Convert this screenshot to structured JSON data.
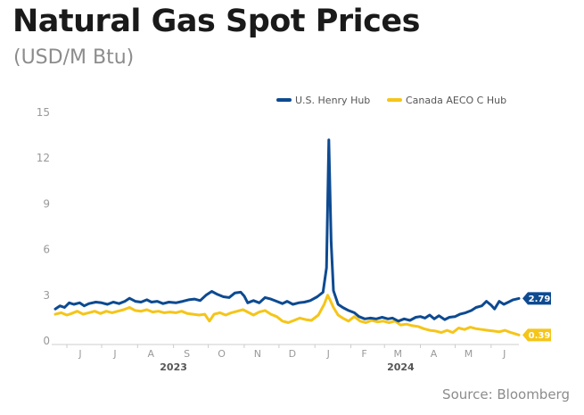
{
  "title": "Natural Gas Spot Prices",
  "subtitle": "(USD/M Btu)",
  "source": "Source: Bloomberg",
  "chart_data": {
    "type": "line",
    "title": "Natural Gas Spot Prices",
    "subtitle": "(USD/M Btu)",
    "xlabel": "",
    "ylabel": "",
    "ylim": [
      0,
      15
    ],
    "yticks": [
      0,
      3,
      6,
      9,
      12,
      15
    ],
    "yticklabels": [
      "0",
      "3",
      "6",
      "9",
      "12",
      "15"
    ],
    "xlim": [
      "2023-05-22",
      "2024-06-25"
    ],
    "x_month_ticks": [
      {
        "date": "2023-06-01",
        "label": "J"
      },
      {
        "date": "2023-07-01",
        "label": "J"
      },
      {
        "date": "2023-08-01",
        "label": "A"
      },
      {
        "date": "2023-09-01",
        "label": "S"
      },
      {
        "date": "2023-10-01",
        "label": "O"
      },
      {
        "date": "2023-11-01",
        "label": "N"
      },
      {
        "date": "2023-12-01",
        "label": "D"
      },
      {
        "date": "2024-01-01",
        "label": "J"
      },
      {
        "date": "2024-02-01",
        "label": "F"
      },
      {
        "date": "2024-03-01",
        "label": "M"
      },
      {
        "date": "2024-04-01",
        "label": "A"
      },
      {
        "date": "2024-05-01",
        "label": "M"
      },
      {
        "date": "2024-06-01",
        "label": "J"
      }
    ],
    "x_year_labels": [
      {
        "date": "2023-09-01",
        "label": "2023"
      },
      {
        "date": "2024-03-15",
        "label": "2024"
      }
    ],
    "grid": false,
    "legend_position": "top-right",
    "series": [
      {
        "name": "U.S. Henry Hub",
        "color": "#0d4a91",
        "end_label": "2.79",
        "points": [
          [
            "2023-05-22",
            2.1
          ],
          [
            "2023-05-26",
            2.3
          ],
          [
            "2023-05-30",
            2.2
          ],
          [
            "2023-06-03",
            2.5
          ],
          [
            "2023-06-07",
            2.4
          ],
          [
            "2023-06-12",
            2.5
          ],
          [
            "2023-06-16",
            2.3
          ],
          [
            "2023-06-20",
            2.45
          ],
          [
            "2023-06-26",
            2.55
          ],
          [
            "2023-07-01",
            2.5
          ],
          [
            "2023-07-06",
            2.4
          ],
          [
            "2023-07-11",
            2.55
          ],
          [
            "2023-07-16",
            2.45
          ],
          [
            "2023-07-21",
            2.6
          ],
          [
            "2023-07-25",
            2.8
          ],
          [
            "2023-07-30",
            2.6
          ],
          [
            "2023-08-04",
            2.55
          ],
          [
            "2023-08-09",
            2.7
          ],
          [
            "2023-08-13",
            2.55
          ],
          [
            "2023-08-18",
            2.6
          ],
          [
            "2023-08-23",
            2.45
          ],
          [
            "2023-08-28",
            2.55
          ],
          [
            "2023-09-03",
            2.5
          ],
          [
            "2023-09-09",
            2.6
          ],
          [
            "2023-09-14",
            2.7
          ],
          [
            "2023-09-19",
            2.75
          ],
          [
            "2023-09-24",
            2.65
          ],
          [
            "2023-09-29",
            3.0
          ],
          [
            "2023-10-04",
            3.25
          ],
          [
            "2023-10-09",
            3.05
          ],
          [
            "2023-10-14",
            2.9
          ],
          [
            "2023-10-19",
            2.85
          ],
          [
            "2023-10-24",
            3.15
          ],
          [
            "2023-10-29",
            3.2
          ],
          [
            "2023-11-01",
            2.95
          ],
          [
            "2023-11-04",
            2.5
          ],
          [
            "2023-11-09",
            2.65
          ],
          [
            "2023-11-14",
            2.5
          ],
          [
            "2023-11-19",
            2.85
          ],
          [
            "2023-11-24",
            2.75
          ],
          [
            "2023-11-29",
            2.6
          ],
          [
            "2023-12-04",
            2.45
          ],
          [
            "2023-12-08",
            2.6
          ],
          [
            "2023-12-13",
            2.4
          ],
          [
            "2023-12-18",
            2.5
          ],
          [
            "2023-12-23",
            2.55
          ],
          [
            "2023-12-28",
            2.65
          ],
          [
            "2024-01-03",
            2.9
          ],
          [
            "2024-01-08",
            3.2
          ],
          [
            "2024-01-11",
            4.8
          ],
          [
            "2024-01-13",
            13.2
          ],
          [
            "2024-01-15",
            6.5
          ],
          [
            "2024-01-17",
            3.3
          ],
          [
            "2024-01-21",
            2.4
          ],
          [
            "2024-01-25",
            2.2
          ],
          [
            "2024-01-30",
            2.0
          ],
          [
            "2024-02-04",
            1.85
          ],
          [
            "2024-02-08",
            1.6
          ],
          [
            "2024-02-13",
            1.45
          ],
          [
            "2024-02-18",
            1.5
          ],
          [
            "2024-02-23",
            1.45
          ],
          [
            "2024-02-28",
            1.55
          ],
          [
            "2024-03-04",
            1.45
          ],
          [
            "2024-03-08",
            1.5
          ],
          [
            "2024-03-13",
            1.3
          ],
          [
            "2024-03-18",
            1.45
          ],
          [
            "2024-03-23",
            1.35
          ],
          [
            "2024-03-28",
            1.55
          ],
          [
            "2024-04-01",
            1.6
          ],
          [
            "2024-04-05",
            1.5
          ],
          [
            "2024-04-09",
            1.7
          ],
          [
            "2024-04-13",
            1.45
          ],
          [
            "2024-04-17",
            1.65
          ],
          [
            "2024-04-22",
            1.4
          ],
          [
            "2024-04-26",
            1.55
          ],
          [
            "2024-05-01",
            1.6
          ],
          [
            "2024-05-05",
            1.75
          ],
          [
            "2024-05-10",
            1.85
          ],
          [
            "2024-05-15",
            2.0
          ],
          [
            "2024-05-19",
            2.2
          ],
          [
            "2024-05-24",
            2.3
          ],
          [
            "2024-05-28",
            2.6
          ],
          [
            "2024-06-01",
            2.35
          ],
          [
            "2024-06-04",
            2.1
          ],
          [
            "2024-06-08",
            2.6
          ],
          [
            "2024-06-12",
            2.4
          ],
          [
            "2024-06-16",
            2.55
          ],
          [
            "2024-06-20",
            2.7
          ],
          [
            "2024-06-25",
            2.79
          ]
        ]
      },
      {
        "name": "Canada AECO C Hub",
        "color": "#f5c518",
        "end_label": "0.39",
        "points": [
          [
            "2023-05-22",
            1.75
          ],
          [
            "2023-05-27",
            1.85
          ],
          [
            "2023-06-01",
            1.7
          ],
          [
            "2023-06-05",
            1.8
          ],
          [
            "2023-06-10",
            1.95
          ],
          [
            "2023-06-15",
            1.75
          ],
          [
            "2023-06-20",
            1.85
          ],
          [
            "2023-06-25",
            1.95
          ],
          [
            "2023-06-30",
            1.8
          ],
          [
            "2023-07-05",
            1.95
          ],
          [
            "2023-07-10",
            1.85
          ],
          [
            "2023-07-15",
            1.95
          ],
          [
            "2023-07-20",
            2.05
          ],
          [
            "2023-07-25",
            2.2
          ],
          [
            "2023-07-30",
            2.0
          ],
          [
            "2023-08-04",
            1.95
          ],
          [
            "2023-08-09",
            2.05
          ],
          [
            "2023-08-14",
            1.9
          ],
          [
            "2023-08-19",
            1.95
          ],
          [
            "2023-08-24",
            1.85
          ],
          [
            "2023-08-29",
            1.9
          ],
          [
            "2023-09-03",
            1.85
          ],
          [
            "2023-09-08",
            1.95
          ],
          [
            "2023-09-13",
            1.8
          ],
          [
            "2023-09-18",
            1.75
          ],
          [
            "2023-09-23",
            1.7
          ],
          [
            "2023-09-28",
            1.75
          ],
          [
            "2023-10-02",
            1.3
          ],
          [
            "2023-10-06",
            1.75
          ],
          [
            "2023-10-11",
            1.85
          ],
          [
            "2023-10-16",
            1.7
          ],
          [
            "2023-10-21",
            1.85
          ],
          [
            "2023-10-26",
            1.95
          ],
          [
            "2023-10-31",
            2.05
          ],
          [
            "2023-11-04",
            1.9
          ],
          [
            "2023-11-09",
            1.7
          ],
          [
            "2023-11-14",
            1.9
          ],
          [
            "2023-11-19",
            2.0
          ],
          [
            "2023-11-24",
            1.75
          ],
          [
            "2023-11-29",
            1.6
          ],
          [
            "2023-12-04",
            1.3
          ],
          [
            "2023-12-09",
            1.2
          ],
          [
            "2023-12-14",
            1.35
          ],
          [
            "2023-12-19",
            1.5
          ],
          [
            "2023-12-24",
            1.4
          ],
          [
            "2023-12-29",
            1.35
          ],
          [
            "2024-01-04",
            1.7
          ],
          [
            "2024-01-09",
            2.4
          ],
          [
            "2024-01-12",
            3.0
          ],
          [
            "2024-01-14",
            2.7
          ],
          [
            "2024-01-17",
            2.2
          ],
          [
            "2024-01-21",
            1.7
          ],
          [
            "2024-01-25",
            1.5
          ],
          [
            "2024-01-30",
            1.3
          ],
          [
            "2024-02-04",
            1.6
          ],
          [
            "2024-02-09",
            1.3
          ],
          [
            "2024-02-14",
            1.2
          ],
          [
            "2024-02-19",
            1.35
          ],
          [
            "2024-02-24",
            1.25
          ],
          [
            "2024-02-29",
            1.3
          ],
          [
            "2024-03-05",
            1.2
          ],
          [
            "2024-03-10",
            1.3
          ],
          [
            "2024-03-15",
            1.05
          ],
          [
            "2024-03-20",
            1.1
          ],
          [
            "2024-03-25",
            1.0
          ],
          [
            "2024-03-30",
            0.95
          ],
          [
            "2024-04-04",
            0.8
          ],
          [
            "2024-04-09",
            0.7
          ],
          [
            "2024-04-14",
            0.65
          ],
          [
            "2024-04-19",
            0.55
          ],
          [
            "2024-04-24",
            0.7
          ],
          [
            "2024-04-29",
            0.55
          ],
          [
            "2024-05-04",
            0.85
          ],
          [
            "2024-05-09",
            0.75
          ],
          [
            "2024-05-14",
            0.9
          ],
          [
            "2024-05-19",
            0.8
          ],
          [
            "2024-05-24",
            0.75
          ],
          [
            "2024-05-29",
            0.7
          ],
          [
            "2024-06-03",
            0.65
          ],
          [
            "2024-06-08",
            0.6
          ],
          [
            "2024-06-13",
            0.7
          ],
          [
            "2024-06-18",
            0.55
          ],
          [
            "2024-06-25",
            0.39
          ]
        ]
      }
    ]
  }
}
